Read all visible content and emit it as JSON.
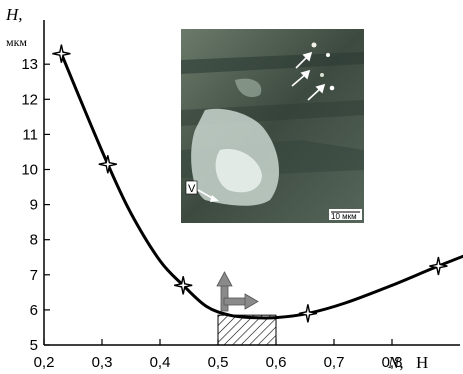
{
  "chart_data": {
    "type": "line",
    "title": "",
    "xlabel": {
      "var": "N,",
      "unit": "Н"
    },
    "ylabel": {
      "var": "H,",
      "unit": "мкм"
    },
    "xlim": [
      0.2,
      1.0
    ],
    "ylim": [
      5,
      13.5
    ],
    "x_ticks": [
      "0,2",
      "0,3",
      "0,4",
      "0,5",
      "0,6",
      "0,7",
      "0,8"
    ],
    "y_ticks": [
      "5",
      "6",
      "7",
      "8",
      "9",
      "10",
      "11",
      "12",
      "13"
    ],
    "points": [
      {
        "x": 0.23,
        "y": 13.3
      },
      {
        "x": 0.31,
        "y": 10.15
      },
      {
        "x": 0.44,
        "y": 6.7
      },
      {
        "x": 0.655,
        "y": 5.9
      },
      {
        "x": 0.88,
        "y": 7.25
      }
    ],
    "curve": [
      [
        0.23,
        13.3
      ],
      [
        0.27,
        11.7
      ],
      [
        0.31,
        10.15
      ],
      [
        0.35,
        8.75
      ],
      [
        0.4,
        7.4
      ],
      [
        0.44,
        6.7
      ],
      [
        0.48,
        6.1
      ],
      [
        0.52,
        5.85
      ],
      [
        0.56,
        5.78
      ],
      [
        0.6,
        5.78
      ],
      [
        0.655,
        5.9
      ],
      [
        0.72,
        6.2
      ],
      [
        0.8,
        6.7
      ],
      [
        0.88,
        7.25
      ],
      [
        0.965,
        7.8
      ]
    ],
    "shaded_range": {
      "x": [
        0.5,
        0.6
      ]
    },
    "inset": {
      "description_colors": [
        "#3d4a40",
        "#6b7a6a",
        "#c9d6cf"
      ],
      "scale_label": "10 мкм",
      "v_label": "V"
    },
    "colors": {
      "curve": "#000000",
      "arrow": "#8a8a8a",
      "hatch": "#000000"
    }
  }
}
